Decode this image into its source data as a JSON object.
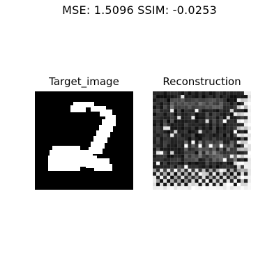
{
  "figure": {
    "suptitle": "MSE: 1.5096  SSIM: -0.0253"
  },
  "panels": [
    {
      "title": "Target_image"
    },
    {
      "title": "Reconstruction"
    }
  ],
  "colors": {
    "background": "#ffffff",
    "image_black": "#000000",
    "image_white": "#ffffff"
  }
}
